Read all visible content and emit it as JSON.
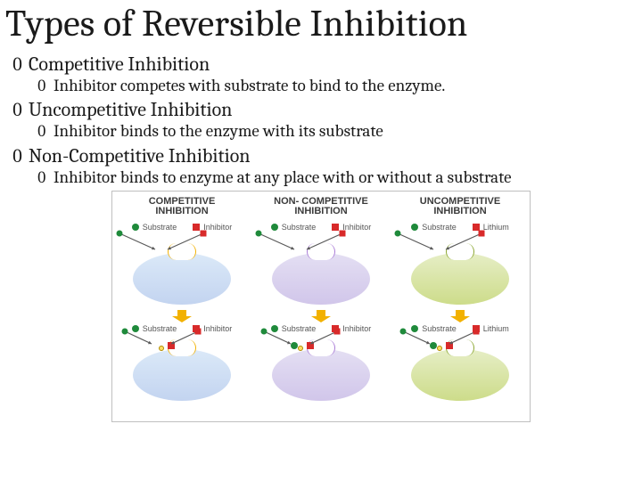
{
  "title": "Types of Reversible Inhibition",
  "bullets": [
    {
      "label": "Competitive Inhibition",
      "desc": "Inhibitor competes with substrate to bind to the enzyme."
    },
    {
      "label": "Uncompetitive Inhibition",
      "desc": "Inhibitor binds to the enzyme with its substrate"
    },
    {
      "label": "Non-Competitive Inhibition",
      "desc": "Inhibitor binds to enzyme at any place with or without a substrate"
    }
  ],
  "bullet_char": "0",
  "diagram": {
    "frame_border_color": "#bfbfbf",
    "arrow_down_color": "#f2b100",
    "arrow_line_color": "#595959",
    "cols": [
      {
        "title": "COMPETITIVE\nINHIBITION",
        "enzyme_color_top": "#dbe9f8",
        "enzyme_color_bottom": "#c3d4f0",
        "notch_hl_color": "#f2b100",
        "legend_top": {
          "sub_label": "Substrate",
          "sub_color": "#1f8a3b",
          "inh_label": "Inhibitor",
          "inh_color": "#d82a2a"
        },
        "legend_bot": {
          "sub_label": "Substrate",
          "sub_color": "#1f8a3b",
          "inh_label": "Inhibitor",
          "inh_color": "#d82a2a"
        },
        "bottom_bound": "inhibitor"
      },
      {
        "title": "NON- COMPETITIVE\nINHIBITION",
        "enzyme_color_top": "#e4dff3",
        "enzyme_color_bottom": "#d1c6ea",
        "notch_hl_color": "#a97bd6",
        "legend_top": {
          "sub_label": "Substrate",
          "sub_color": "#1f8a3b",
          "inh_label": "Inhibitor",
          "inh_color": "#d82a2a"
        },
        "legend_bot": {
          "sub_label": "Substrate",
          "sub_color": "#1f8a3b",
          "inh_label": "Inhibitor",
          "inh_color": "#d82a2a"
        },
        "bottom_bound": "both"
      },
      {
        "title": "UNCOMPETITIVE\nINHIBITION",
        "enzyme_color_top": "#e6eec6",
        "enzyme_color_bottom": "#cddc8a",
        "notch_hl_color": "#8aa62f",
        "legend_top": {
          "sub_label": "Substrate",
          "sub_color": "#1f8a3b",
          "inh_label": "Lithium",
          "inh_color": "#d82a2a"
        },
        "legend_bot": {
          "sub_label": "Substrate",
          "sub_color": "#1f8a3b",
          "inh_label": "Lithium",
          "inh_color": "#d82a2a"
        },
        "bottom_bound": "both"
      }
    ]
  }
}
